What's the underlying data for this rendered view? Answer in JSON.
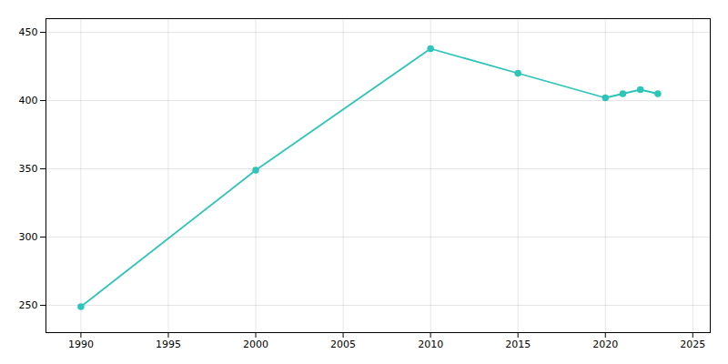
{
  "chart_data": {
    "type": "line",
    "x": [
      1990,
      2000,
      2010,
      2015,
      2020,
      2021,
      2022,
      2023
    ],
    "values": [
      249,
      349,
      438,
      420,
      402,
      405,
      408,
      405
    ],
    "color": "#2dc5b8",
    "marker": "circle",
    "xlim": [
      1988,
      2026
    ],
    "xticks": [
      1990,
      1995,
      2000,
      2005,
      2010,
      2015,
      2020,
      2025
    ],
    "ylim": [
      230,
      460
    ],
    "yticks": [
      250,
      300,
      350,
      400,
      450
    ],
    "grid": true
  }
}
